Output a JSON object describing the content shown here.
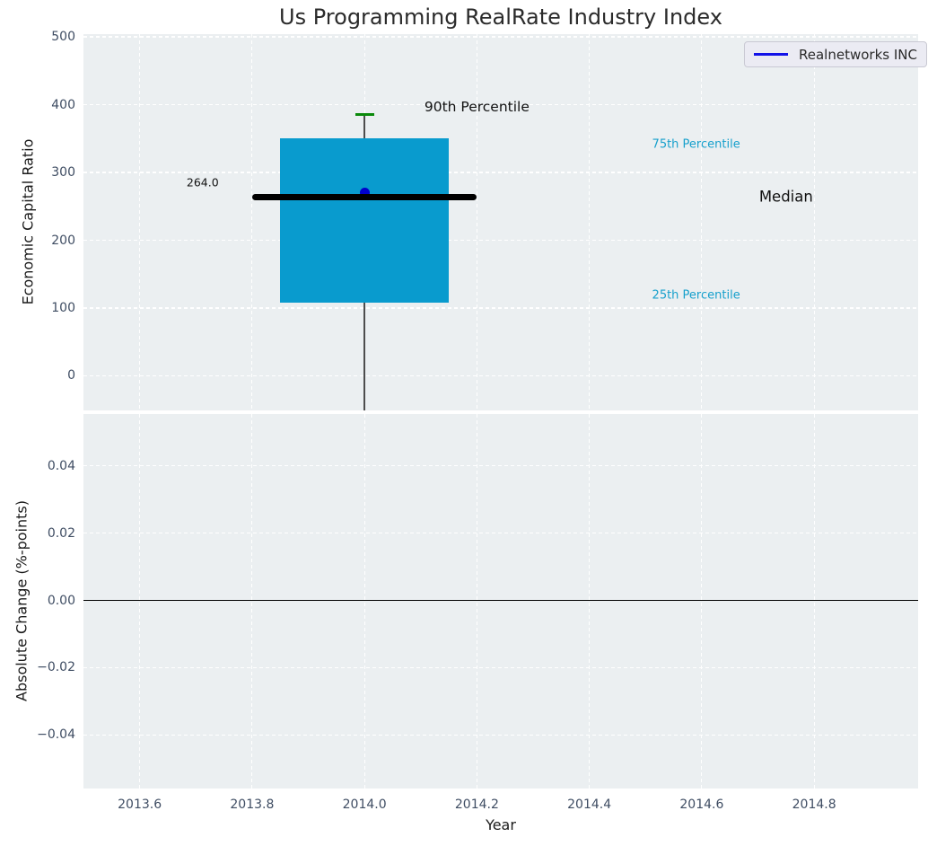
{
  "figure": {
    "title": "Us Programming RealRate Industry Index",
    "legend": {
      "label": "Realnetworks INC"
    }
  },
  "colors": {
    "plot_bg": "#ebeff1",
    "grid": "#ffffff",
    "box_fill": "#099bce",
    "percentile_cap_green": "#0a8a0a",
    "median_line": "#000000",
    "company_point_blue": "#0000cc",
    "legend_line_blue": "#1212e8",
    "tick_text": "#3f4d63",
    "annotation_cyan": "#17a0cc",
    "zero_line": "#000000",
    "whisker_gray": "#4d4d4d"
  },
  "chart_data": [
    {
      "type": "boxplot",
      "ylabel": "Economic Capital Ratio",
      "series_label": "Realnetworks INC",
      "legend_position": "upper right",
      "grid": "white dashed on light gray",
      "xlim": [
        2013.5,
        2014.985
      ],
      "ylim": [
        -51,
        504
      ],
      "ytick_values": [
        0,
        100,
        200,
        300,
        400,
        500
      ],
      "ytick_labels": [
        "0",
        "100",
        "200",
        "300",
        "400",
        "500"
      ],
      "xtick_values": [
        2013.6,
        2013.8,
        2014.0,
        2014.2,
        2014.4,
        2014.6,
        2014.8
      ],
      "box": {
        "x": 2014.0,
        "box_width": 0.3,
        "median_line_span": 0.4,
        "cap_width": 0.034,
        "p90": 385,
        "p75": 350,
        "median": 264,
        "p25": 108,
        "median_value_label": "264.0",
        "whisker_low_clipped_at_axis": -51
      },
      "company_point": {
        "x": 2014.0,
        "y": 270
      },
      "annotations": [
        {
          "text": "90th Percentile",
          "x": 2014.2,
          "y": 397,
          "color": "#111111",
          "size": 15.5
        },
        {
          "text": "75th Percentile",
          "x": 2014.59,
          "y": 341,
          "color": "#17a0cc",
          "size": 13
        },
        {
          "text": "Median",
          "x": 2014.75,
          "y": 264,
          "color": "#111111",
          "size": 16.5
        },
        {
          "text": "25th Percentile",
          "x": 2014.59,
          "y": 119,
          "color": "#17a0cc",
          "size": 13
        },
        {
          "text": "264.0",
          "x": 2013.712,
          "y": 285,
          "color": "#111111",
          "size": 12.5
        }
      ]
    },
    {
      "type": "line",
      "ylabel": "Absolute Change (%-points)",
      "xlabel": "Year",
      "xlim": [
        2013.5,
        2014.985
      ],
      "ylim": [
        -0.0559,
        0.0554
      ],
      "ytick_values": [
        -0.04,
        -0.02,
        0.0,
        0.02,
        0.04
      ],
      "ytick_labels": [
        "−0.04",
        "−0.02",
        "0.00",
        "0.02",
        "0.04"
      ],
      "xtick_values": [
        2013.6,
        2013.8,
        2014.0,
        2014.2,
        2014.4,
        2014.6,
        2014.8
      ],
      "xtick_labels": [
        "2013.6",
        "2013.8",
        "2014.0",
        "2014.2",
        "2014.4",
        "2014.6",
        "2014.8"
      ],
      "zero_line_y": 0.0
    }
  ]
}
